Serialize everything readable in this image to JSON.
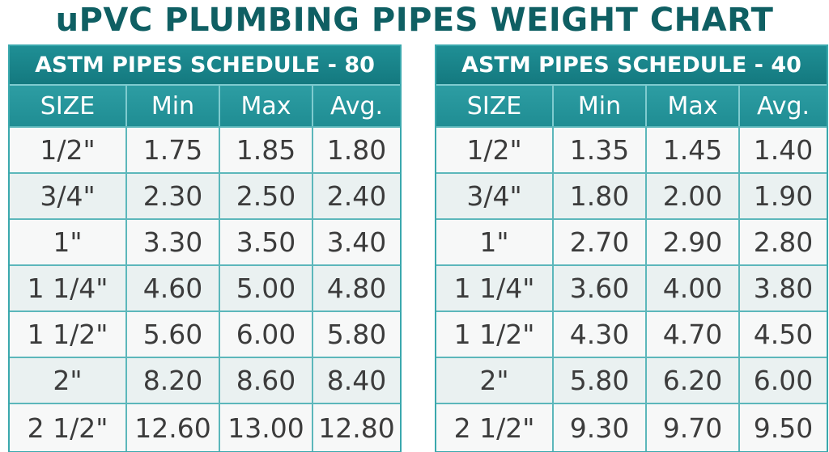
{
  "title": "uPVC PLUMBING PIPES WEIGHT CHART",
  "tables": [
    {
      "heading": "ASTM PIPES SCHEDULE - 80",
      "columns": [
        "SIZE",
        "Min",
        "Max",
        "Avg."
      ],
      "rows": [
        [
          "1/2\"",
          "1.75",
          "1.85",
          "1.80"
        ],
        [
          "3/4\"",
          "2.30",
          "2.50",
          "2.40"
        ],
        [
          "1\"",
          "3.30",
          "3.50",
          "3.40"
        ],
        [
          "1 1/4\"",
          "4.60",
          "5.00",
          "4.80"
        ],
        [
          "1 1/2\"",
          "5.60",
          "6.00",
          "5.80"
        ],
        [
          "2\"",
          "8.20",
          "8.60",
          "8.40"
        ],
        [
          "2 1/2\"",
          "12.60",
          "13.00",
          "12.80"
        ]
      ]
    },
    {
      "heading": "ASTM PIPES SCHEDULE - 40",
      "columns": [
        "SIZE",
        "Min",
        "Max",
        "Avg."
      ],
      "rows": [
        [
          "1/2\"",
          "1.35",
          "1.45",
          "1.40"
        ],
        [
          "3/4\"",
          "1.80",
          "2.00",
          "1.90"
        ],
        [
          "1\"",
          "2.70",
          "2.90",
          "2.80"
        ],
        [
          "1 1/4\"",
          "3.60",
          "4.00",
          "3.80"
        ],
        [
          "1 1/2\"",
          "4.30",
          "4.70",
          "4.50"
        ],
        [
          "2\"",
          "5.80",
          "6.20",
          "6.00"
        ],
        [
          "2 1/2\"",
          "9.30",
          "9.70",
          "9.50"
        ]
      ]
    }
  ]
}
